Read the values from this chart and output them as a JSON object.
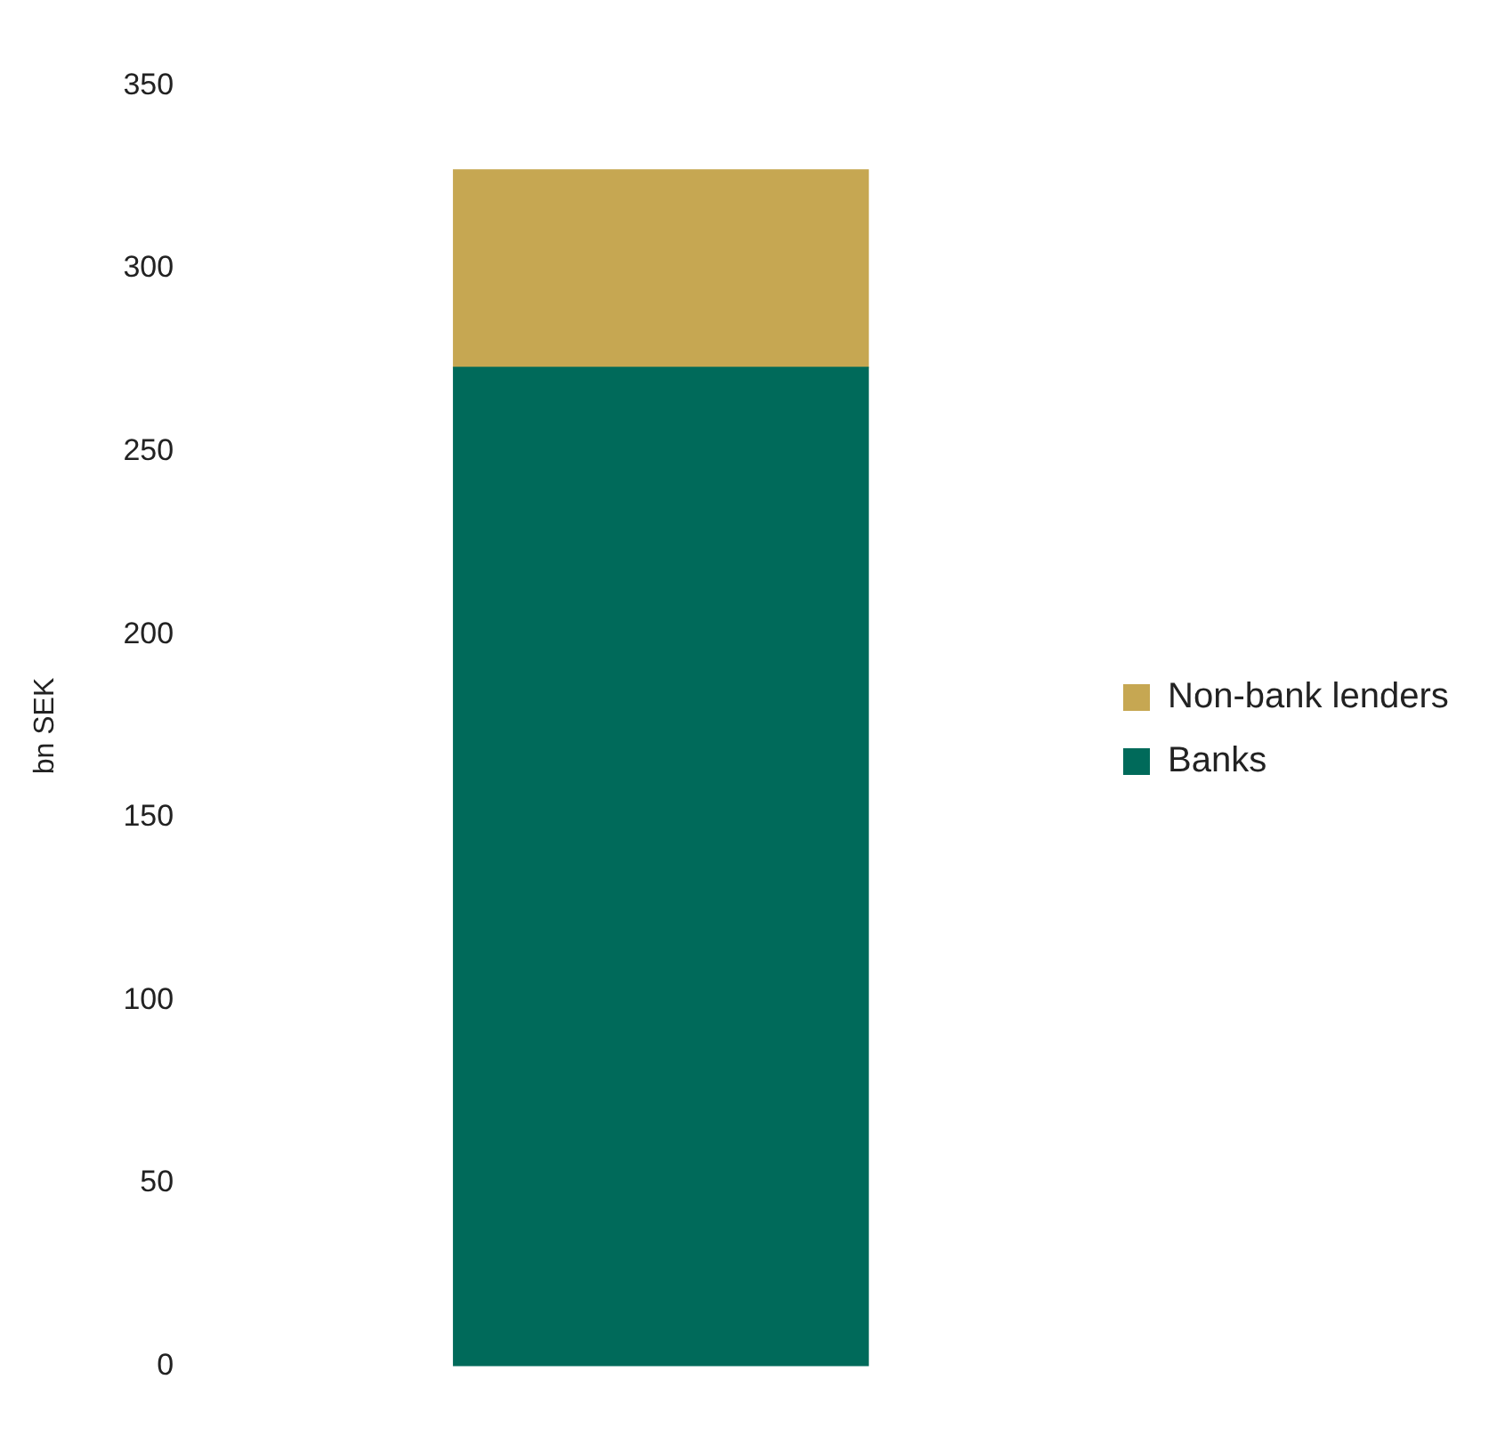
{
  "chart_data": {
    "type": "bar",
    "ylabel": "bn SEK",
    "categories": [
      null
    ],
    "stacked": true,
    "series": [
      {
        "name": "Banks",
        "color": "#006a5a",
        "values": [
          273
        ]
      },
      {
        "name": "Non-bank lenders",
        "color": "#c6a752",
        "values": [
          54
        ]
      }
    ],
    "ylim": [
      0,
      350
    ],
    "yticks": [
      0,
      50,
      100,
      150,
      200,
      250,
      300,
      350
    ],
    "grid": false,
    "legend": "right",
    "tick_labels": "y"
  }
}
